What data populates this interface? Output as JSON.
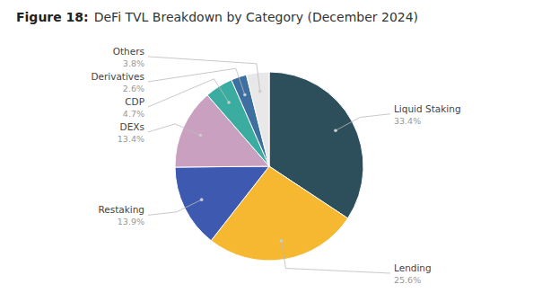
{
  "chart_data": {
    "type": "pie",
    "title": "Figure 18:",
    "subtitle": "DeFi TVL Breakdown by Category (December 2024)",
    "categories": [
      "Liquid Staking",
      "Lending",
      "Restaking",
      "DEXs",
      "CDP",
      "Derivatives",
      "Others"
    ],
    "values": [
      33.4,
      25.6,
      13.9,
      13.4,
      4.7,
      2.6,
      3.8
    ],
    "value_labels": [
      "33.4%",
      "25.6%",
      "13.9%",
      "13.4%",
      "4.7%",
      "2.6%",
      "3.8%"
    ],
    "colors": [
      "#2d4f5c",
      "#f5b830",
      "#3d5ab0",
      "#c9a0c0",
      "#3aada0",
      "#3d6fa0",
      "#e8e8e8"
    ],
    "data_labels": true
  }
}
